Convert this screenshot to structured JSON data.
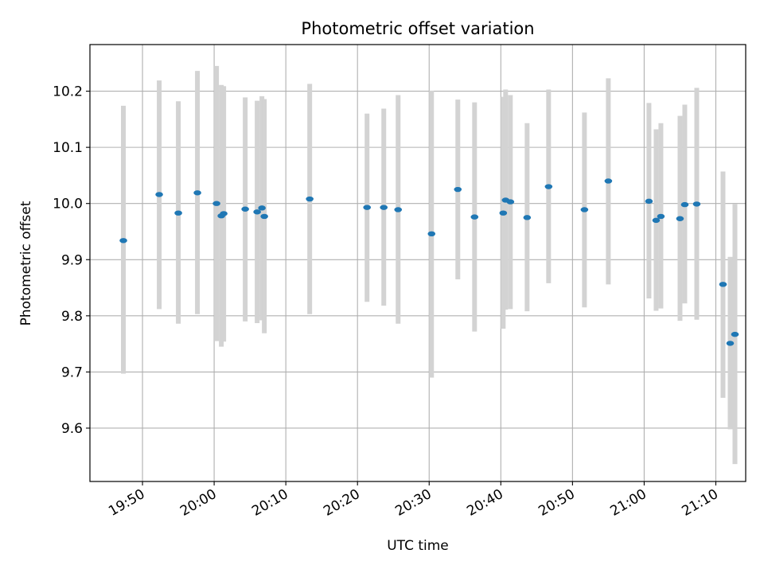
{
  "chart_data": {
    "type": "scatter",
    "title": "Photometric offset variation",
    "xlabel": "UTC time",
    "ylabel": "Photometric offset",
    "xlim": [
      "19:42:40",
      "21:14:10"
    ],
    "ylim": [
      9.505,
      10.283
    ],
    "x_ticks": [
      "19:50",
      "20:00",
      "20:10",
      "20:20",
      "20:30",
      "20:40",
      "20:50",
      "21:00",
      "21:10"
    ],
    "y_ticks": [
      "9.6",
      "9.7",
      "9.8",
      "9.9",
      "10.0",
      "10.1",
      "10.2"
    ],
    "grid": true,
    "colors": {
      "point": "#1f77b4",
      "errorbar": "#d3d3d3",
      "grid": "#b0b0b0",
      "axes": "#000000"
    },
    "series": [
      {
        "points": [
          {
            "x": "19:47:20",
            "y": 9.934,
            "lo": 9.697,
            "hi": 10.174
          },
          {
            "x": "19:52:20",
            "y": 10.016,
            "lo": 9.812,
            "hi": 10.219
          },
          {
            "x": "19:55:00",
            "y": 9.983,
            "lo": 9.786,
            "hi": 10.182
          },
          {
            "x": "19:57:40",
            "y": 10.019,
            "lo": 9.803,
            "hi": 10.236
          },
          {
            "x": "20:00:20",
            "y": 10.0,
            "lo": 9.755,
            "hi": 10.245
          },
          {
            "x": "20:01:00",
            "y": 9.978,
            "lo": 9.745,
            "hi": 10.211
          },
          {
            "x": "20:01:20",
            "y": 9.982,
            "lo": 9.754,
            "hi": 10.209
          },
          {
            "x": "20:04:20",
            "y": 9.99,
            "lo": 9.79,
            "hi": 10.189
          },
          {
            "x": "20:06:00",
            "y": 9.985,
            "lo": 9.787,
            "hi": 10.183
          },
          {
            "x": "20:06:40",
            "y": 9.992,
            "lo": 9.792,
            "hi": 10.191
          },
          {
            "x": "20:07:00",
            "y": 9.977,
            "lo": 9.769,
            "hi": 10.186
          },
          {
            "x": "20:13:20",
            "y": 10.008,
            "lo": 9.803,
            "hi": 10.213
          },
          {
            "x": "20:21:20",
            "y": 9.993,
            "lo": 9.825,
            "hi": 10.16
          },
          {
            "x": "20:23:40",
            "y": 9.993,
            "lo": 9.818,
            "hi": 10.169
          },
          {
            "x": "20:25:40",
            "y": 9.989,
            "lo": 9.786,
            "hi": 10.193
          },
          {
            "x": "20:30:20",
            "y": 9.946,
            "lo": 9.69,
            "hi": 10.201
          },
          {
            "x": "20:34:00",
            "y": 10.025,
            "lo": 9.865,
            "hi": 10.185
          },
          {
            "x": "20:36:20",
            "y": 9.976,
            "lo": 9.772,
            "hi": 10.18
          },
          {
            "x": "20:40:20",
            "y": 9.983,
            "lo": 9.777,
            "hi": 10.19
          },
          {
            "x": "20:40:40",
            "y": 10.006,
            "lo": 9.811,
            "hi": 10.203
          },
          {
            "x": "20:41:20",
            "y": 10.003,
            "lo": 9.812,
            "hi": 10.193
          },
          {
            "x": "20:43:40",
            "y": 9.975,
            "lo": 9.808,
            "hi": 10.143
          },
          {
            "x": "20:46:40",
            "y": 10.03,
            "lo": 9.858,
            "hi": 10.203
          },
          {
            "x": "20:51:40",
            "y": 9.989,
            "lo": 9.815,
            "hi": 10.162
          },
          {
            "x": "20:55:00",
            "y": 10.04,
            "lo": 9.856,
            "hi": 10.223
          },
          {
            "x": "21:00:40",
            "y": 10.004,
            "lo": 9.831,
            "hi": 10.179
          },
          {
            "x": "21:01:40",
            "y": 9.97,
            "lo": 9.809,
            "hi": 10.132
          },
          {
            "x": "21:02:20",
            "y": 9.977,
            "lo": 9.813,
            "hi": 10.143
          },
          {
            "x": "21:05:00",
            "y": 9.973,
            "lo": 9.791,
            "hi": 10.156
          },
          {
            "x": "21:05:40",
            "y": 9.998,
            "lo": 9.822,
            "hi": 10.176
          },
          {
            "x": "21:07:20",
            "y": 9.999,
            "lo": 9.793,
            "hi": 10.206
          },
          {
            "x": "21:11:00",
            "y": 9.856,
            "lo": 9.654,
            "hi": 10.057
          },
          {
            "x": "21:12:00",
            "y": 9.751,
            "lo": 9.598,
            "hi": 9.905
          },
          {
            "x": "21:12:40",
            "y": 9.767,
            "lo": 9.536,
            "hi": 9.999
          }
        ]
      }
    ]
  }
}
